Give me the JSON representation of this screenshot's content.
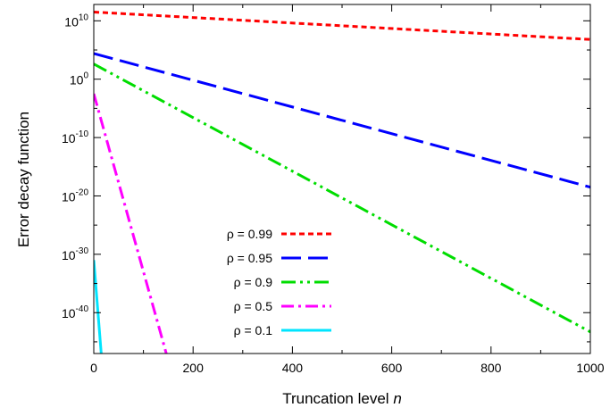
{
  "chart_data": {
    "type": "line",
    "xlabel_text": "Truncation level ",
    "xlabel_var": "n",
    "ylabel": "Error decay function",
    "xlim": [
      0,
      1000
    ],
    "ylim_log10": [
      -47,
      12.8
    ],
    "y_scale": "log",
    "grid": false,
    "legend_placement": "bottom-left",
    "x_ticks": [
      0,
      200,
      400,
      600,
      800,
      1000
    ],
    "y_ticks": [
      {
        "exp": 10,
        "base": "10",
        "sup": "10"
      },
      {
        "exp": 0,
        "base": "10",
        "sup": "0"
      },
      {
        "exp": -10,
        "base": "10",
        "sup": "-10"
      },
      {
        "exp": -20,
        "base": "10",
        "sup": "-20"
      },
      {
        "exp": -30,
        "base": "10",
        "sup": "-30"
      },
      {
        "exp": -40,
        "base": "10",
        "sup": "-40"
      }
    ],
    "series": [
      {
        "name": "ρ = 0.99",
        "color": "#ff0000",
        "dash": "short-dash",
        "x": [
          0,
          1000
        ],
        "log10_y": [
          11.5,
          6.8
        ]
      },
      {
        "name": "ρ = 0.95",
        "color": "#0000ff",
        "dash": "long-dash",
        "x": [
          0,
          1000
        ],
        "log10_y": [
          4.4,
          -18.5
        ]
      },
      {
        "name": "ρ = 0.9",
        "color": "#00dd00",
        "dash": "dash-dot-dot",
        "x": [
          0,
          1000
        ],
        "log10_y": [
          2.6,
          -43.3
        ]
      },
      {
        "name": "ρ = 0.5",
        "color": "#ff00ff",
        "dash": "dash-dot",
        "x": [
          0,
          146
        ],
        "log10_y": [
          -2.5,
          -47
        ]
      },
      {
        "name": "ρ = 0.1",
        "color": "#00e5ff",
        "dash": "solid",
        "x": [
          0,
          15
        ],
        "log10_y": [
          -31,
          -47
        ]
      }
    ]
  }
}
